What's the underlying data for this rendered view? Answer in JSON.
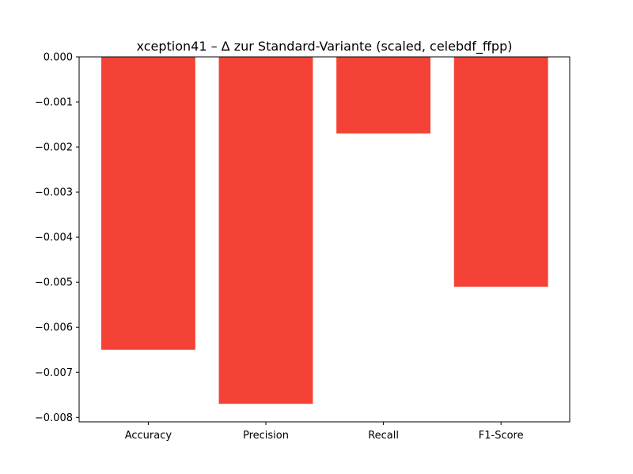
{
  "chart_data": {
    "type": "bar",
    "title": "xception41 – Δ zur Standard-Variante (scaled, celebdf_ffpp)",
    "xlabel": "",
    "ylabel": "",
    "categories": [
      "Accuracy",
      "Precision",
      "Recall",
      "F1-Score"
    ],
    "values": [
      -0.0065,
      -0.0077,
      -0.0017,
      -0.0051
    ],
    "ylim": [
      -0.0081,
      0.0
    ],
    "yticks": [
      0.0,
      -0.001,
      -0.002,
      -0.003,
      -0.004,
      -0.005,
      -0.006,
      -0.007,
      -0.008
    ],
    "ytick_labels": [
      "0.000",
      "−0.001",
      "−0.002",
      "−0.003",
      "−0.004",
      "−0.005",
      "−0.006",
      "−0.007",
      "−0.008"
    ],
    "bar_color": "#f44336",
    "grid": false,
    "legend": "none"
  }
}
